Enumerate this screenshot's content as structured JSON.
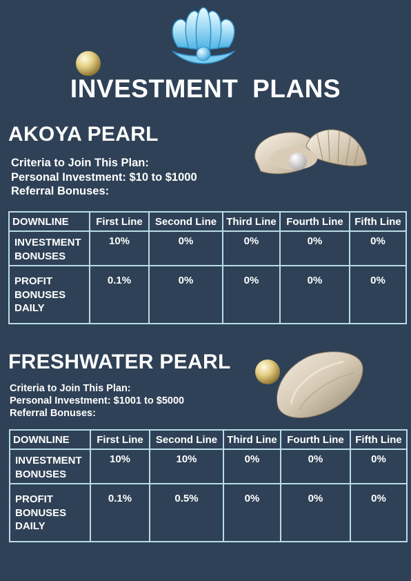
{
  "page": {
    "title": "INVESTMENT PLANS",
    "background": "#2f4156",
    "accent": "#b8dde8"
  },
  "plans": [
    {
      "name": "AKOYA PEARL",
      "criteria_label": "Criteria to Join This Plan:",
      "personal_investment": "Personal Investment: $10 to $1000",
      "referral_label": "Referral Bonuses:",
      "table": {
        "headers": [
          "DOWNLINE",
          "First Line",
          "Second Line",
          "Third Line",
          "Fourth Line",
          "Fifth Line"
        ],
        "rows": [
          {
            "label": "INVESTMENT BONUSES",
            "values": [
              "10%",
              "0%",
              "0%",
              "0%",
              "0%"
            ]
          },
          {
            "label": "PROFIT BONUSES DAILY",
            "values": [
              "0.1%",
              "0%",
              "0%",
              "0%",
              "0%"
            ]
          }
        ]
      }
    },
    {
      "name": "FRESHWATER PEARL",
      "criteria_label": "Criteria to Join This Plan:",
      "personal_investment": "Personal Investment: $1001 to $5000",
      "referral_label": "Referral Bonuses:",
      "table": {
        "headers": [
          "DOWNLINE",
          "First Line",
          "Second Line",
          "Third Line",
          "Fourth Line",
          "Fifth Line"
        ],
        "rows": [
          {
            "label": "INVESTMENT BONUSES",
            "values": [
              "10%",
              "10%",
              "0%",
              "0%",
              "0%"
            ]
          },
          {
            "label": "PROFIT BONUSES DAILY",
            "values": [
              "0.1%",
              "0.5%",
              "0%",
              "0%",
              "0%"
            ]
          }
        ]
      }
    }
  ],
  "images": [
    "seashell-logo",
    "gold-pearl",
    "oyster-with-pearl",
    "gold-pearl",
    "freshwater-pearl-shell"
  ]
}
